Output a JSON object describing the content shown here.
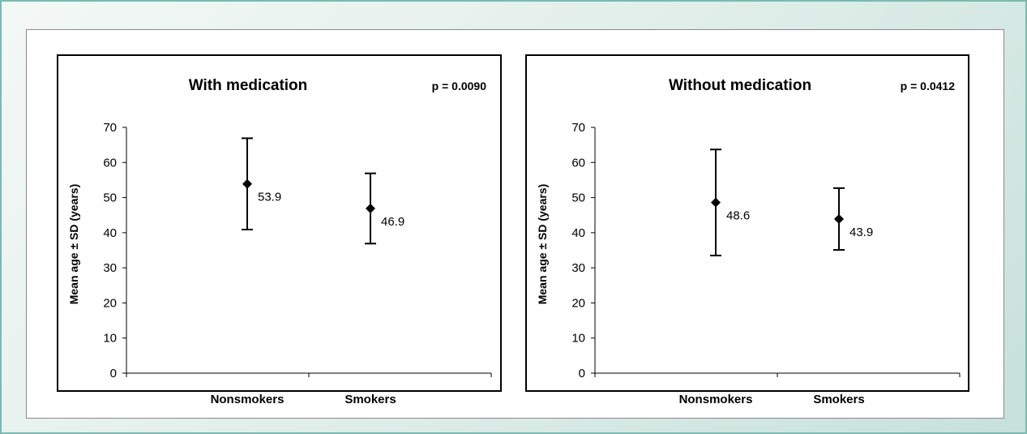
{
  "chart_data": [
    {
      "type": "scatter",
      "title": "With medication",
      "annotation": "p = 0.0090",
      "ylabel": "Mean age ± SD (years)",
      "xlabel": "",
      "categories": [
        "Nonsmokers",
        "Smokers"
      ],
      "values": [
        53.9,
        46.9
      ],
      "sd": [
        13.0,
        10.0
      ],
      "value_labels": [
        "53.9",
        "46.9"
      ],
      "ylim": [
        0,
        70
      ],
      "yticks": [
        "0",
        "10",
        "20",
        "30",
        "40",
        "50",
        "60",
        "70"
      ],
      "grid": false,
      "marker": "diamond",
      "colors": {
        "mark": "#000000",
        "frame": "#000000"
      }
    },
    {
      "type": "scatter",
      "title": "Without medication",
      "annotation": "p = 0.0412",
      "ylabel": "Mean age ± SD (years)",
      "xlabel": "",
      "categories": [
        "Nonsmokers",
        "Smokers"
      ],
      "values": [
        48.6,
        43.9
      ],
      "sd": [
        15.1,
        8.8
      ],
      "value_labels": [
        "48.6",
        "43.9"
      ],
      "ylim": [
        0,
        70
      ],
      "yticks": [
        "0",
        "10",
        "20",
        "30",
        "40",
        "50",
        "60",
        "70"
      ],
      "grid": false,
      "marker": "diamond",
      "colors": {
        "mark": "#000000",
        "frame": "#000000"
      }
    }
  ],
  "theme": {
    "frame_border": "#7fb8ae",
    "panel_border": "#8a8a8a"
  }
}
